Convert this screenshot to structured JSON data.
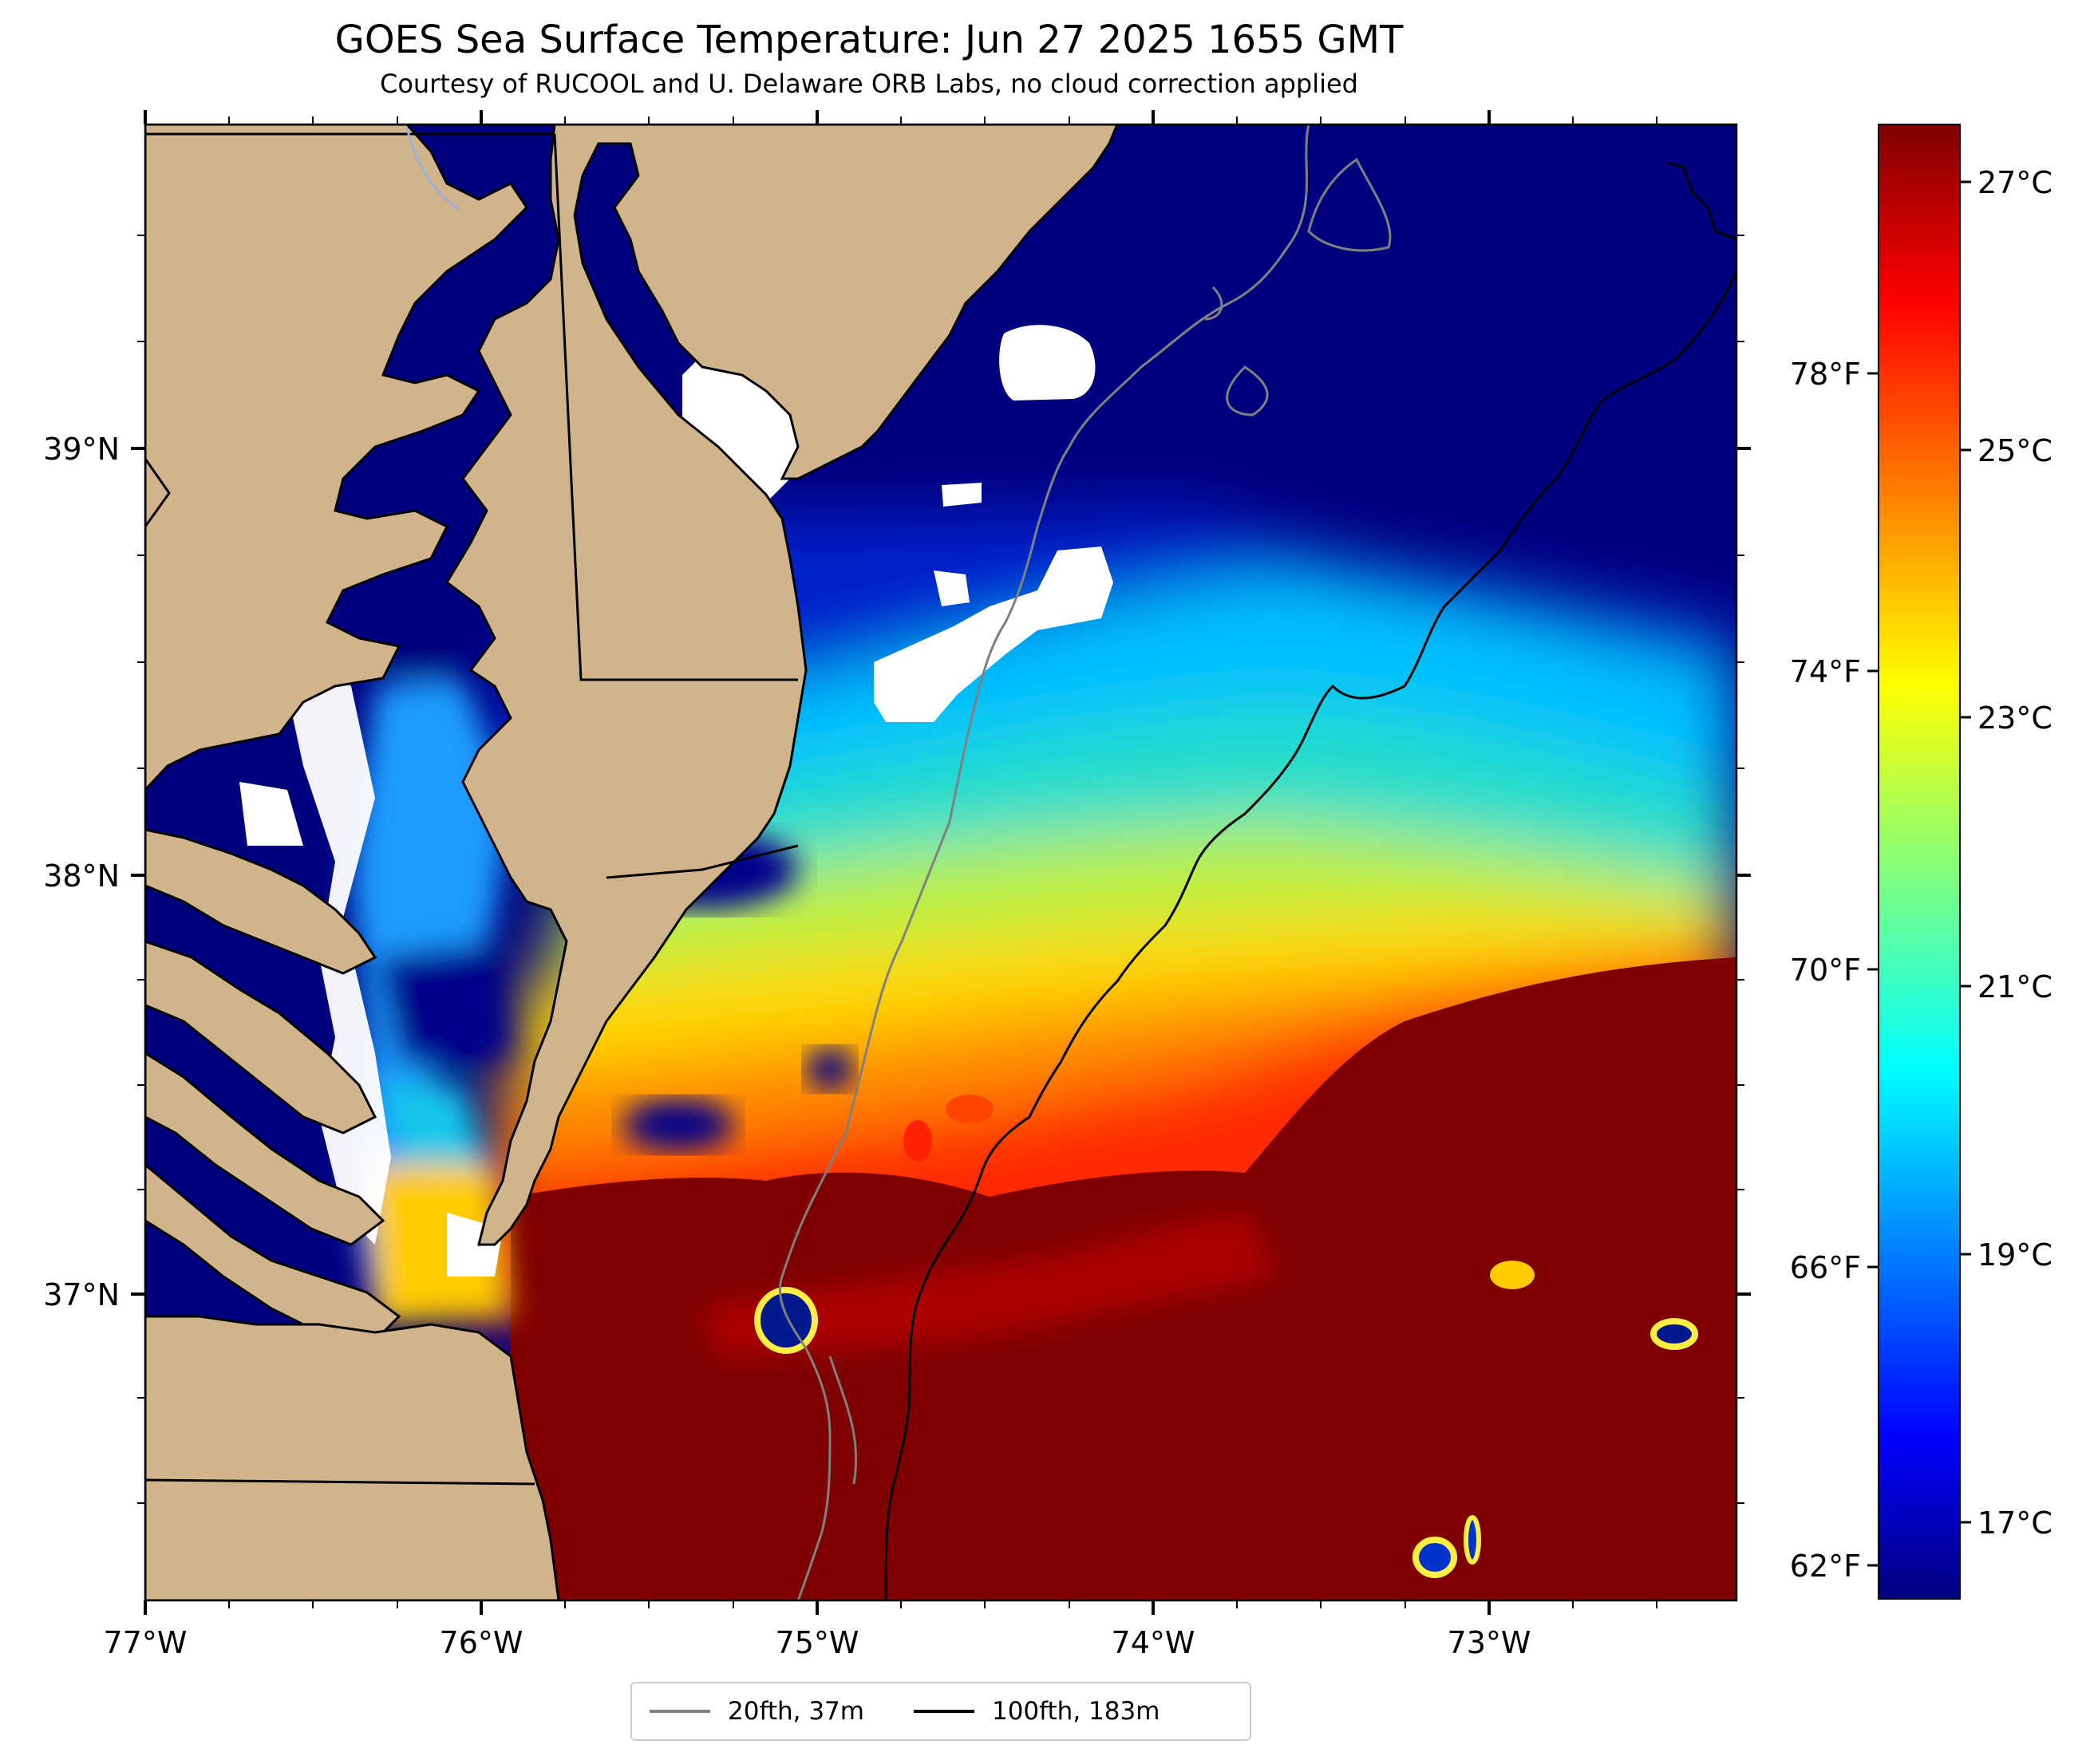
{
  "title": "GOES Sea Surface Temperature: Jun 27 2025 1655 GMT",
  "subtitle": "Courtesy of RUCOOL and U. Delaware ORB Labs, no cloud correction applied",
  "map": {
    "lon_range": [
      -77.0,
      -72.27
    ],
    "lat_range": [
      36.27,
      39.76
    ],
    "lon_ticks": [
      "77°W",
      "76°W",
      "75°W",
      "74°W",
      "73°W"
    ],
    "lat_ticks": [
      "39°N",
      "38°N",
      "37°N"
    ],
    "land_color": "#d2b48c",
    "cloud_color": "#ffffff"
  },
  "colorbar": {
    "celsius_labels": [
      "27°C",
      "25°C",
      "23°C",
      "21°C",
      "19°C",
      "17°C"
    ],
    "fahrenheit_labels": [
      "78°F",
      "74°F",
      "70°F",
      "66°F",
      "62°F"
    ],
    "colormap": "jet",
    "range_c": [
      16.4,
      27.4
    ]
  },
  "legend": {
    "items": [
      {
        "label": "20fth, 37m",
        "color": "#808080"
      },
      {
        "label": "100fth, 183m",
        "color": "#000000"
      }
    ]
  }
}
